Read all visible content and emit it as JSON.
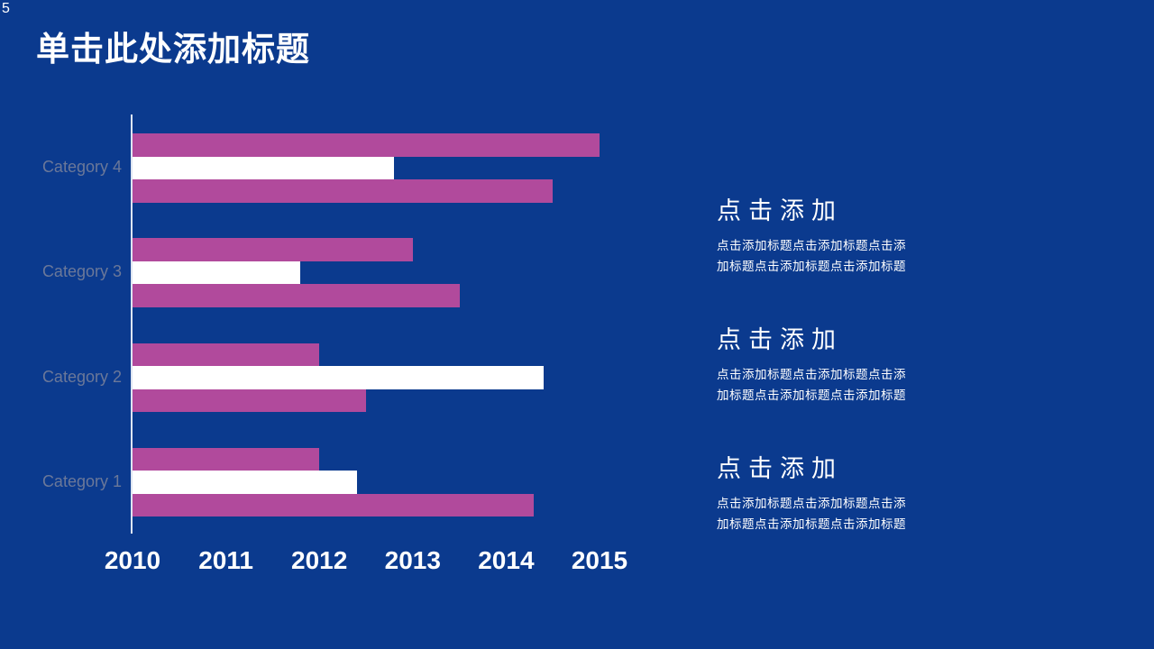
{
  "slide": {
    "page_number": "5",
    "title": "单击此处添加标题"
  },
  "colors": {
    "background": "#0b3a8e",
    "title_text": "#ffffff",
    "category_label": "#6b7899",
    "axis_line": "#dde5f2",
    "tick_label": "#ffffff"
  },
  "chart_data": {
    "type": "bar",
    "orientation": "horizontal",
    "title": "",
    "categories": [
      "Category 1",
      "Category 2",
      "Category 3",
      "Category 4"
    ],
    "category_order_top_to_bottom": [
      "Category 4",
      "Category 3",
      "Category 2",
      "Category 1"
    ],
    "series": [
      {
        "name": "series-1",
        "color": "#b14a9c",
        "values": [
          4.3,
          2.5,
          3.5,
          4.5
        ]
      },
      {
        "name": "series-2",
        "color": "#ffffff",
        "values": [
          2.4,
          4.4,
          1.8,
          2.8
        ]
      },
      {
        "name": "series-3",
        "color": "#b14a9c",
        "values": [
          2.0,
          2.0,
          3.0,
          5.0
        ]
      }
    ],
    "value_axis": {
      "min": 0,
      "max": 5,
      "tick_labels": [
        "2010",
        "2011",
        "2012",
        "2013",
        "2014",
        "2015"
      ]
    },
    "legend": "none",
    "gridlines": false
  },
  "panels": [
    {
      "heading": "点击添加",
      "body_line1": "点击添加标题点击添加标题点击添",
      "body_line2": "加标题点击添加标题点击添加标题"
    },
    {
      "heading": "点击添加",
      "body_line1": "点击添加标题点击添加标题点击添",
      "body_line2": "加标题点击添加标题点击添加标题"
    },
    {
      "heading": "点击添加",
      "body_line1": "点击添加标题点击添加标题点击添",
      "body_line2": "加标题点击添加标题点击添加标题"
    }
  ]
}
